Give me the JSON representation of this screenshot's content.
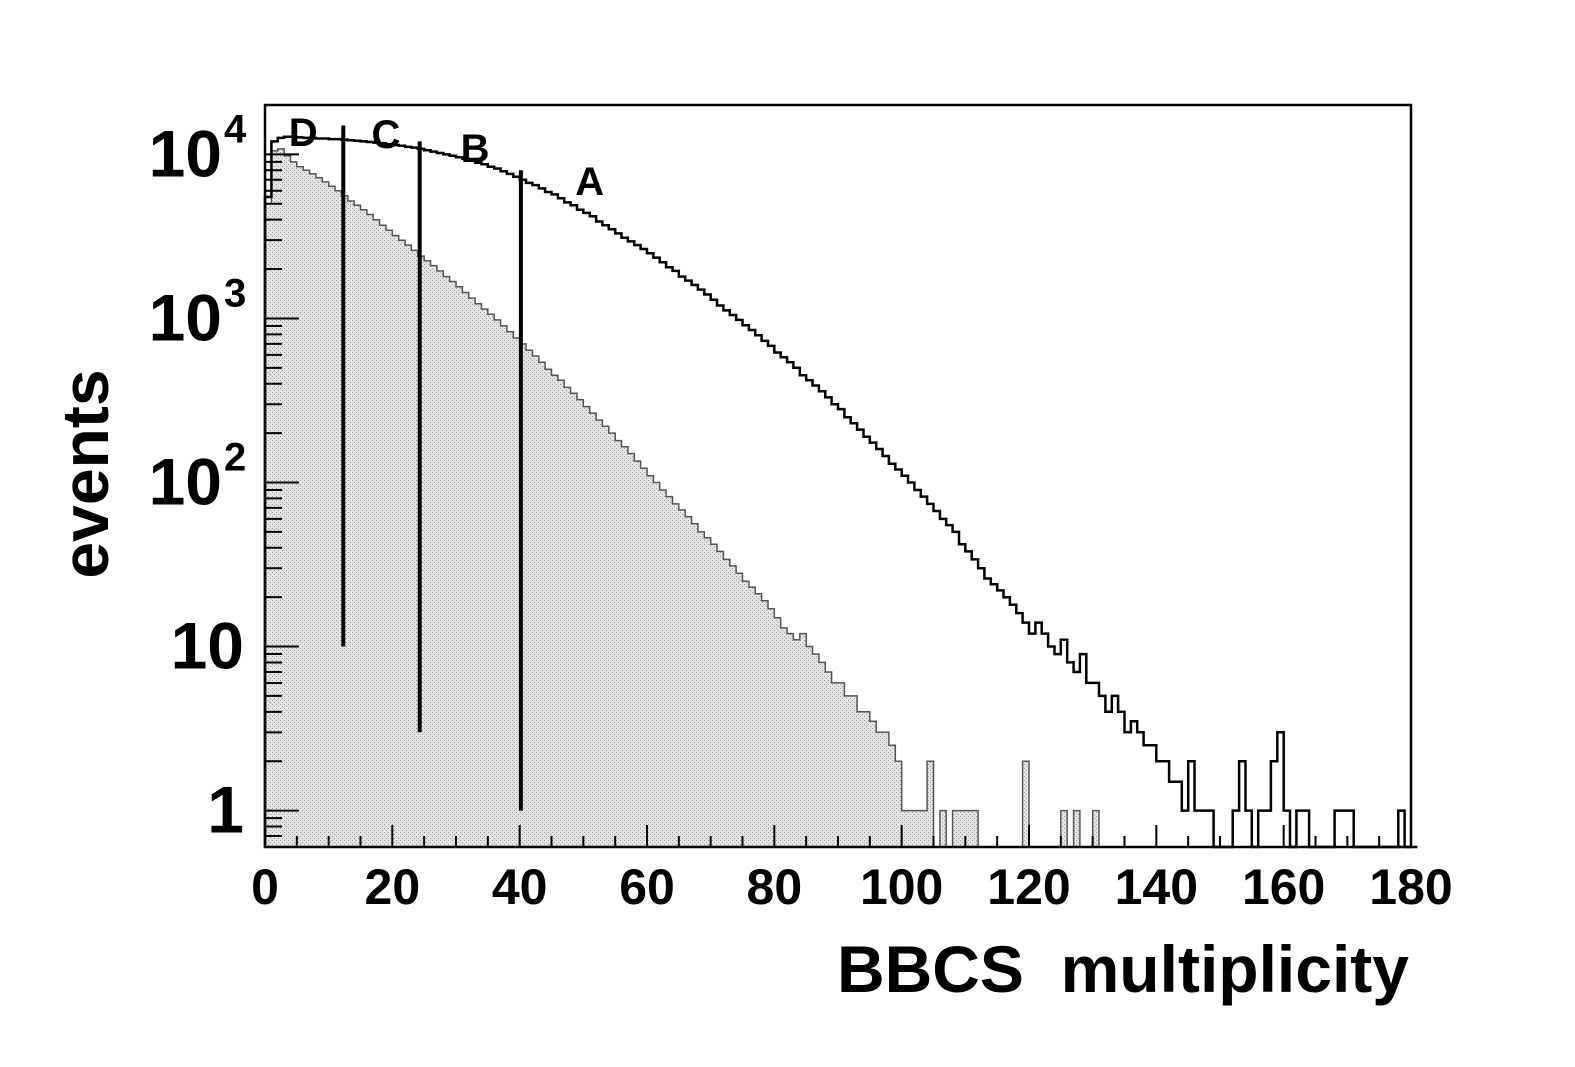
{
  "chart_data": {
    "type": "histogram",
    "xlabel": "BBCS  multiplicity",
    "ylabel": "events",
    "xlim": [
      0,
      180
    ],
    "ylim": [
      0.6,
      20000
    ],
    "yscale": "log",
    "grid": false,
    "x_ticks": [
      {
        "value": 0,
        "label": "0"
      },
      {
        "value": 20,
        "label": "20"
      },
      {
        "value": 40,
        "label": "40"
      },
      {
        "value": 60,
        "label": "60"
      },
      {
        "value": 80,
        "label": "80"
      },
      {
        "value": 100,
        "label": "100"
      },
      {
        "value": 120,
        "label": "120"
      },
      {
        "value": 140,
        "label": "140"
      },
      {
        "value": 160,
        "label": "160"
      },
      {
        "value": 180,
        "label": "180"
      }
    ],
    "y_ticks": [
      {
        "value": 1,
        "base": "1",
        "exp": ""
      },
      {
        "value": 10,
        "base": "10",
        "exp": ""
      },
      {
        "value": 100,
        "base": "10",
        "exp": "2"
      },
      {
        "value": 1000,
        "base": "10",
        "exp": "3"
      },
      {
        "value": 10000,
        "base": "10",
        "exp": "4"
      }
    ],
    "regions": [
      {
        "label": "D",
        "x_label": 6
      },
      {
        "label": "C",
        "x_label": 19
      },
      {
        "label": "B",
        "x_label": 33
      },
      {
        "label": "A",
        "x_label": 51
      }
    ],
    "cut_lines": [
      {
        "x": 12.3,
        "y_top": 15000,
        "y_bottom": 10
      },
      {
        "x": 24.3,
        "y_top": 12000,
        "y_bottom": 3
      },
      {
        "x": 40.2,
        "y_top": 8000,
        "y_bottom": 1
      }
    ],
    "series": [
      {
        "style": "outline",
        "color": "#000000",
        "bin_width": 1,
        "start": 0,
        "values": [
          5500,
          12000,
          12600,
          12800,
          12800,
          12700,
          12600,
          12600,
          12500,
          12500,
          12400,
          12400,
          12300,
          12200,
          12100,
          12000,
          11900,
          11800,
          11700,
          11500,
          11400,
          11300,
          11100,
          11000,
          10800,
          10600,
          10400,
          10200,
          10000,
          9800,
          9600,
          9400,
          9200,
          8900,
          8700,
          8400,
          8200,
          7900,
          7600,
          7300,
          7000,
          6700,
          6500,
          6200,
          5900,
          5700,
          5400,
          5100,
          4900,
          4600,
          4400,
          4200,
          3900,
          3700,
          3500,
          3300,
          3100,
          2950,
          2800,
          2650,
          2500,
          2350,
          2200,
          2050,
          1950,
          1800,
          1700,
          1600,
          1500,
          1400,
          1300,
          1200,
          1120,
          1050,
          980,
          910,
          850,
          790,
          730,
          680,
          620,
          580,
          540,
          500,
          450,
          420,
          390,
          360,
          330,
          300,
          280,
          250,
          230,
          210,
          190,
          175,
          160,
          145,
          130,
          120,
          110,
          100,
          90,
          82,
          74,
          67,
          60,
          55,
          50,
          42,
          38,
          34,
          30,
          26,
          24,
          22,
          20,
          18,
          16,
          14,
          12,
          14,
          12,
          10,
          9,
          11,
          8,
          7,
          9,
          6,
          6,
          5,
          4,
          5,
          4,
          3,
          3.5,
          3,
          2.5,
          2.5,
          2,
          2,
          1.5,
          1.5,
          1,
          2,
          1,
          1,
          1,
          0,
          0,
          0,
          1,
          2,
          1,
          0,
          1,
          1,
          2,
          3,
          1,
          0,
          1,
          1,
          0,
          0,
          0,
          0,
          1,
          1,
          1,
          0,
          0,
          0,
          0,
          0,
          0,
          0,
          1,
          0,
          0
        ]
      },
      {
        "style": "filled",
        "color": "#d4d4d4",
        "bin_width": 1,
        "start": 0,
        "values": [
          5000,
          10500,
          10800,
          9800,
          9000,
          8400,
          8000,
          7600,
          7200,
          6800,
          6400,
          6000,
          5600,
          5200,
          4900,
          4600,
          4300,
          4000,
          3700,
          3450,
          3200,
          3000,
          2800,
          2600,
          2400,
          2250,
          2100,
          1950,
          1800,
          1680,
          1560,
          1440,
          1330,
          1230,
          1140,
          1060,
          980,
          900,
          830,
          760,
          700,
          640,
          590,
          540,
          490,
          450,
          420,
          380,
          350,
          320,
          290,
          265,
          240,
          220,
          200,
          180,
          165,
          150,
          135,
          122,
          110,
          100,
          90,
          82,
          74,
          68,
          62,
          56,
          50,
          46,
          42,
          38,
          34,
          31,
          28,
          25,
          23,
          21,
          19,
          17,
          15,
          13,
          12,
          11,
          12,
          10,
          9,
          8,
          7,
          6,
          6,
          5,
          5,
          4,
          4,
          3.5,
          3,
          3,
          2.5,
          2,
          1,
          1,
          1,
          1,
          2,
          0,
          1,
          0,
          1,
          1,
          1,
          1,
          0,
          0,
          0,
          0,
          0,
          0,
          0,
          2,
          0,
          0,
          0,
          0,
          0,
          1,
          0,
          1,
          0,
          0,
          1,
          0
        ]
      }
    ]
  }
}
